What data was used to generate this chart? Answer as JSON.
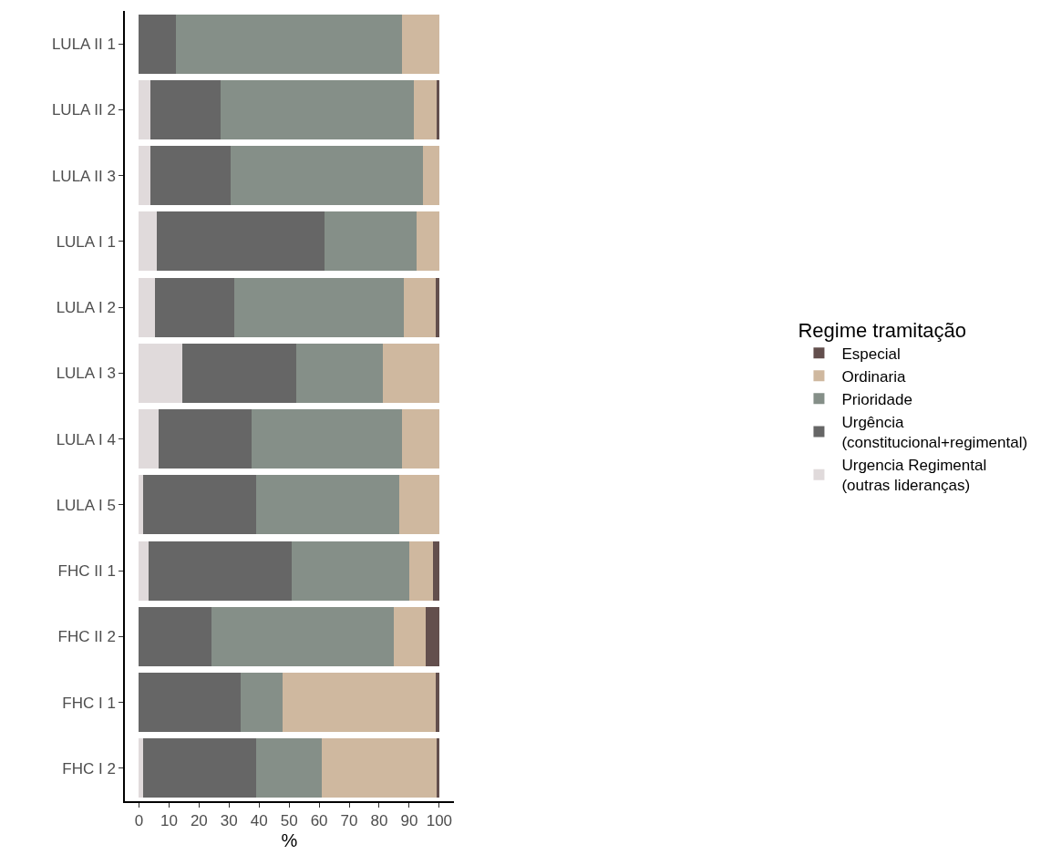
{
  "chart_data": {
    "type": "bar",
    "orientation": "horizontal",
    "stacked": true,
    "xlabel": "%",
    "legend_title": "Regime tramitação",
    "legend": "right",
    "grid": false,
    "categories": [
      "LULA II 1",
      "LULA II 2",
      "LULA II 3",
      "LULA I 1",
      "LULA I 2",
      "LULA I 3",
      "LULA I 4",
      "LULA I 5",
      "FHC II 1",
      "FHC II 2",
      "FHC I 1",
      "FHC I 2"
    ],
    "xlim": [
      -4.7,
      104.9
    ],
    "xticks": [
      0,
      10,
      20,
      30,
      40,
      50,
      60,
      70,
      80,
      90,
      100
    ],
    "series": [
      {
        "name": "Urgencia Regimental\n(outras lideranças)",
        "color": "#e0dadb",
        "values": [
          0,
          3.9,
          3.9,
          5.8,
          5.4,
          14.3,
          6.4,
          1.4,
          3.2,
          0,
          0,
          1.3
        ]
      },
      {
        "name": "Urgência\n(constitucional+regimental)",
        "color": "#666666",
        "values": [
          12.3,
          23.3,
          26.7,
          56.0,
          26.2,
          38.2,
          31.2,
          37.6,
          47.6,
          24.0,
          34.0,
          37.7
        ]
      },
      {
        "name": "Prioridade",
        "color": "#858f88",
        "values": [
          75.3,
          64.4,
          63.9,
          30.8,
          56.5,
          28.7,
          50.0,
          47.6,
          39.1,
          61.0,
          13.9,
          21.8
        ]
      },
      {
        "name": "Ordinaria",
        "color": "#cfb89f",
        "values": [
          12.4,
          7.8,
          5.5,
          7.4,
          10.8,
          18.8,
          12.4,
          13.4,
          8.0,
          10.5,
          51.0,
          38.6
        ]
      },
      {
        "name": "Especial",
        "color": "#634f4d",
        "values": [
          0,
          0.6,
          0,
          0,
          1.1,
          0,
          0,
          0,
          2.1,
          4.5,
          1.1,
          0.6
        ]
      }
    ]
  }
}
